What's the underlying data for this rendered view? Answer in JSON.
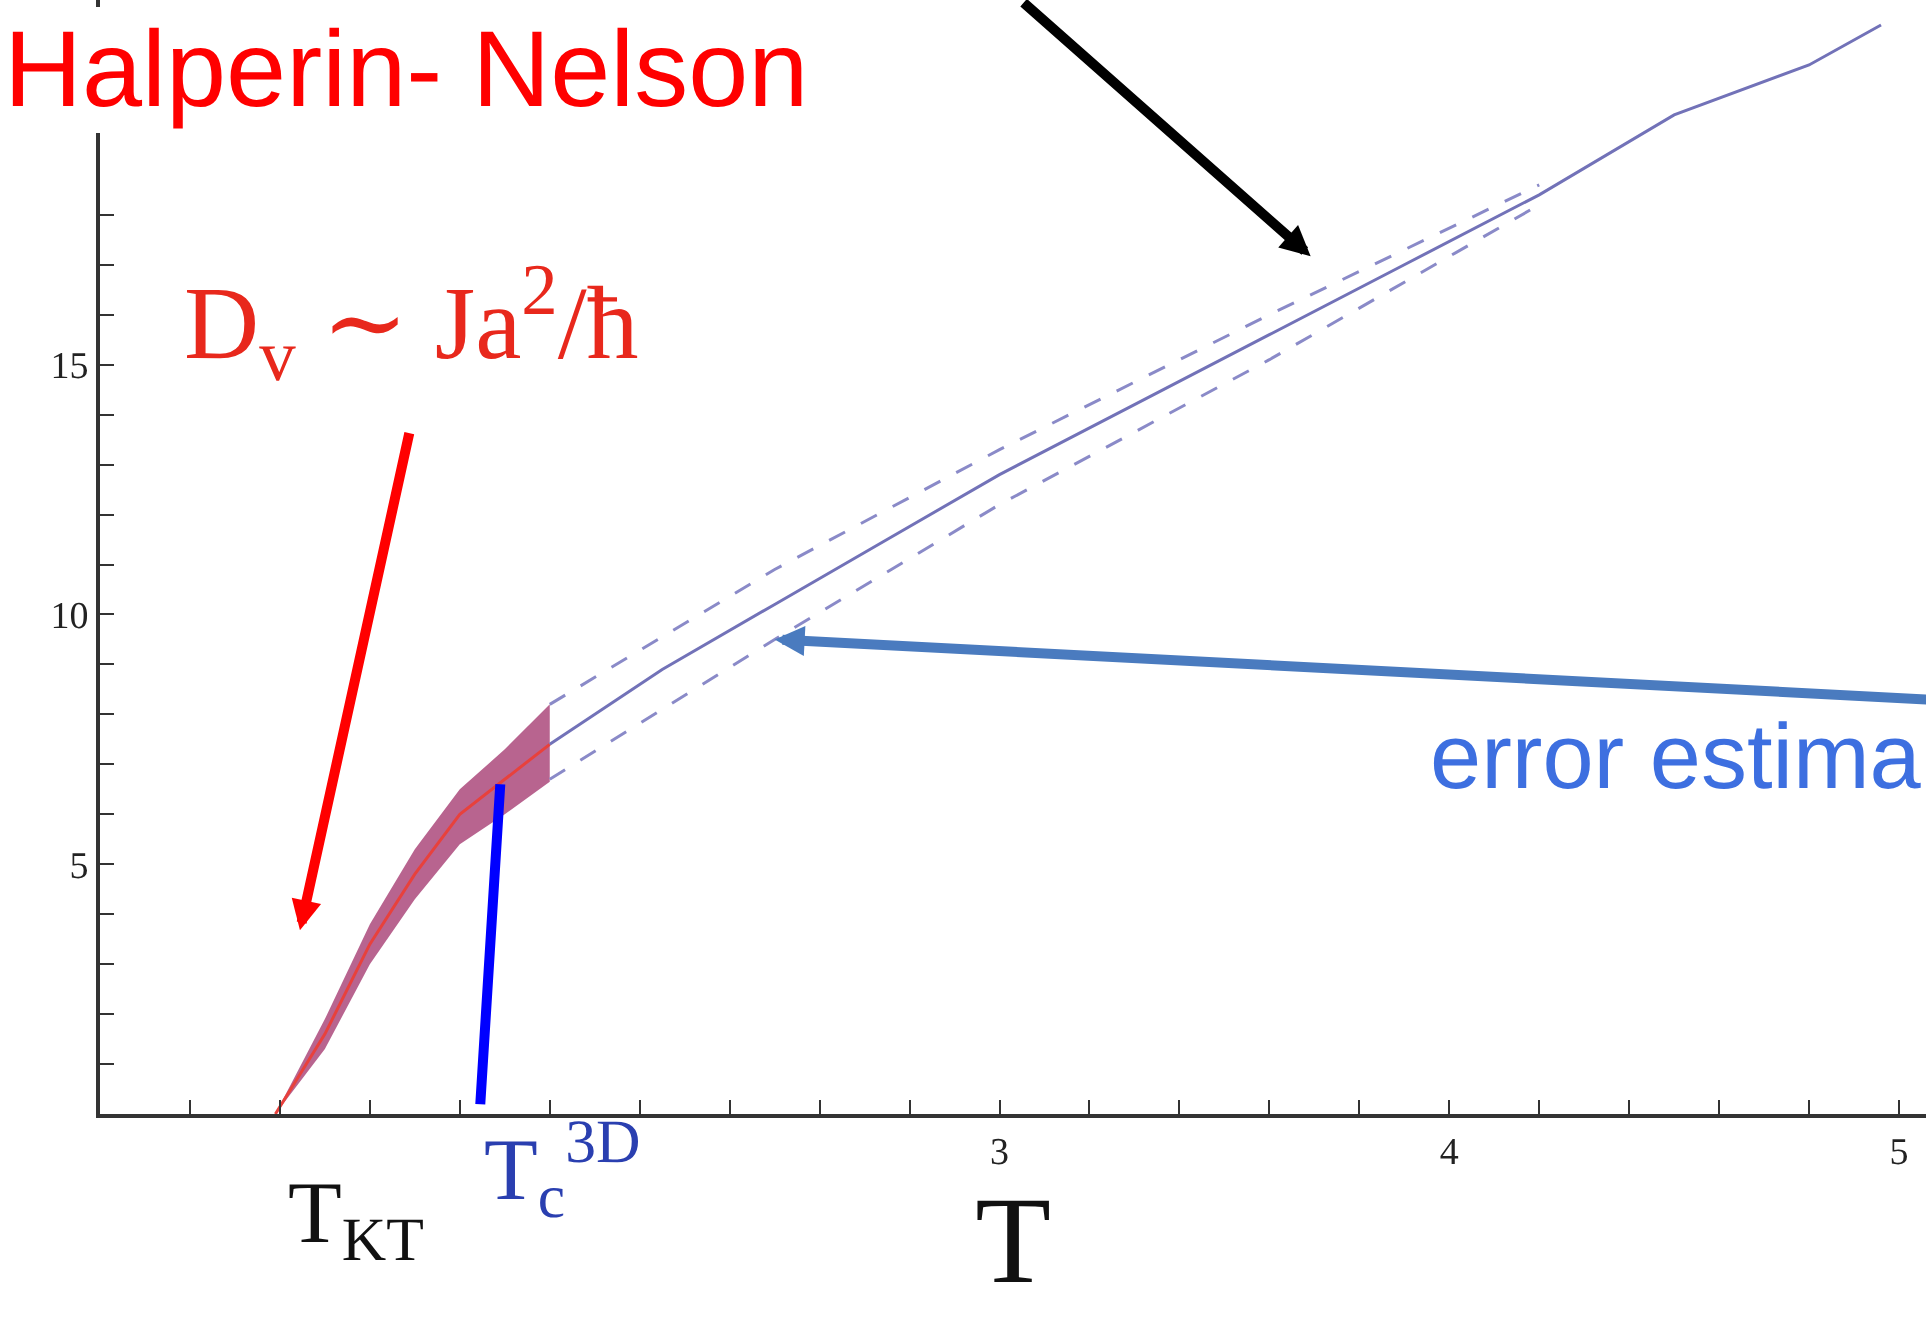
{
  "chart_data": {
    "type": "line",
    "xlabel": "T",
    "xlim": [
      1,
      5.06
    ],
    "ylim": [
      0,
      22.3
    ],
    "xticks": [
      {
        "value": 1,
        "label": null
      },
      {
        "value": 1.2,
        "label": null
      },
      {
        "value": 1.4,
        "label": null
      },
      {
        "value": 1.6,
        "label": null
      },
      {
        "value": 1.8,
        "label": null
      },
      {
        "value": 2,
        "label": null
      },
      {
        "value": 2.2,
        "label": null
      },
      {
        "value": 2.4,
        "label": null
      },
      {
        "value": 2.6,
        "label": null
      },
      {
        "value": 2.8,
        "label": null
      },
      3,
      {
        "value": 3.2,
        "label": null
      },
      {
        "value": 3.4,
        "label": null
      },
      {
        "value": 3.6,
        "label": null
      },
      {
        "value": 3.8,
        "label": null
      },
      4,
      {
        "value": 4.2,
        "label": null
      },
      {
        "value": 4.4,
        "label": null
      },
      {
        "value": 4.6,
        "label": null
      },
      {
        "value": 4.8,
        "label": null
      },
      5
    ],
    "yticks": [
      {
        "value": 1,
        "label": null
      },
      {
        "value": 2,
        "label": null
      },
      {
        "value": 3,
        "label": null
      },
      {
        "value": 4,
        "label": null
      },
      5,
      {
        "value": 6,
        "label": null
      },
      {
        "value": 7,
        "label": null
      },
      {
        "value": 8,
        "label": null
      },
      {
        "value": 9,
        "label": null
      },
      10,
      {
        "value": 11,
        "label": null
      },
      {
        "value": 12,
        "label": null
      },
      {
        "value": 13,
        "label": null
      },
      {
        "value": 14,
        "label": null
      },
      15,
      {
        "value": 16,
        "label": null
      },
      {
        "value": 17,
        "label": null
      },
      {
        "value": 18,
        "label": null
      }
    ],
    "marker": "none",
    "series": [
      {
        "color": "#e8413c",
        "x": [
          1.39,
          1.5,
          1.6,
          1.7,
          1.8,
          1.9,
          2.0
        ],
        "values": [
          0,
          1.6,
          3.4,
          4.8,
          6.0,
          6.7,
          7.4
        ],
        "lower": [
          0,
          1.3,
          3.0,
          4.3,
          5.4,
          6.0,
          6.65
        ],
        "upper": [
          0,
          1.9,
          3.8,
          5.3,
          6.5,
          7.3,
          8.2
        ]
      },
      {
        "color": "#7272b8",
        "x": [
          2,
          2.25,
          2.5,
          2.75,
          3,
          3.3,
          3.6,
          3.9,
          4.2,
          4.5,
          4.8,
          4.96
        ],
        "values": [
          7.4,
          8.9,
          10.2,
          11.5,
          12.8,
          14.2,
          15.6,
          17.0,
          18.4,
          20.0,
          21.0,
          21.8
        ],
        "line_style": "solid"
      },
      {
        "color": "#8a8ac8",
        "x": [
          2,
          2.5,
          3,
          3.6,
          4.2
        ],
        "values": [
          8.2,
          10.9,
          13.3,
          16.0,
          18.6
        ],
        "line_style": "dashed"
      },
      {
        "color": "#8a8ac8",
        "x": [
          2,
          2.5,
          3,
          3.6,
          4.2
        ],
        "values": [
          6.7,
          9.5,
          12.2,
          15.1,
          18.2
        ],
        "line_style": "dashed"
      }
    ],
    "annotations": [
      "Halperin- Nelson",
      "D$_{v}$ ∼ Ja$^{2}$/ħ",
      {
        "text": "error estima",
        "x": 2.5,
        "y": 9.5
      },
      {
        "text": "T$_{KT}$",
        "x": 1.39,
        "y": 0
      },
      {
        "text": "T$_{c}$$^{3D}$",
        "x": 1.89,
        "y": 6.6
      }
    ]
  }
}
